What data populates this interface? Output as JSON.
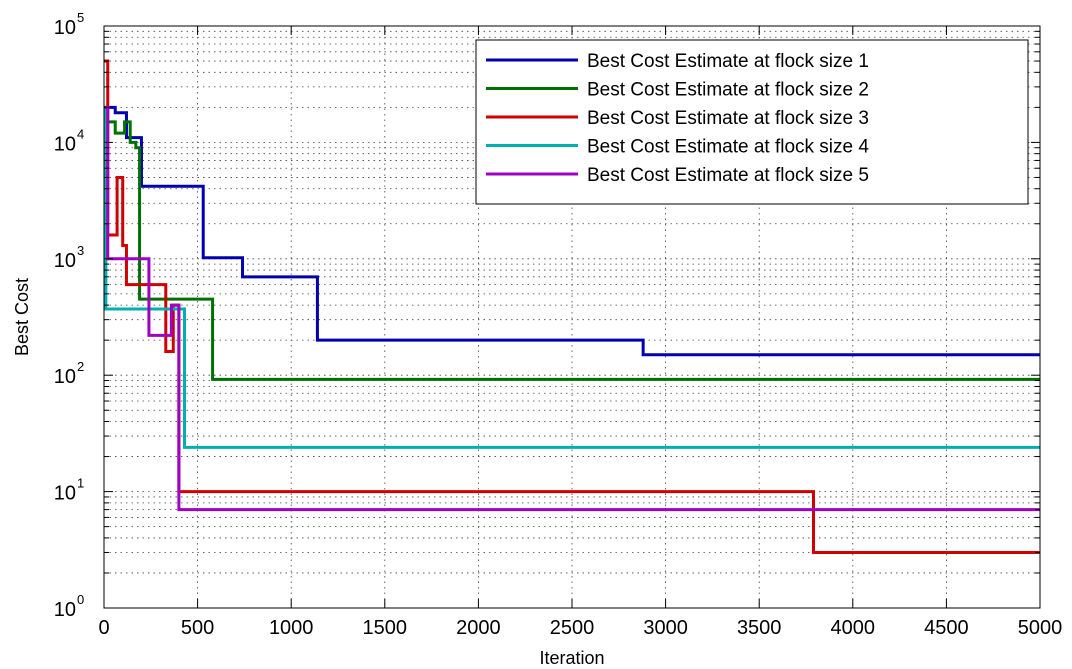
{
  "chart_data": {
    "type": "line",
    "title": "",
    "xlabel": "Iteration",
    "ylabel": "Best Cost",
    "xlim": [
      0,
      5000
    ],
    "ylim": [
      1,
      100000
    ],
    "yscale": "log",
    "grid": true,
    "minor_grid": true,
    "legend_position": "top-right",
    "x_ticks": [
      "0",
      "500",
      "1000",
      "1500",
      "2000",
      "2500",
      "3000",
      "3500",
      "4000",
      "4500",
      "5000"
    ],
    "x_tick_values": [
      0,
      500,
      1000,
      1500,
      2000,
      2500,
      3000,
      3500,
      4000,
      4500,
      5000
    ],
    "y_ticks": [
      {
        "base": "10",
        "exp": "0",
        "value": 1
      },
      {
        "base": "10",
        "exp": "1",
        "value": 10
      },
      {
        "base": "10",
        "exp": "2",
        "value": 100
      },
      {
        "base": "10",
        "exp": "3",
        "value": 1000
      },
      {
        "base": "10",
        "exp": "4",
        "value": 10000
      },
      {
        "base": "10",
        "exp": "5",
        "value": 100000
      }
    ],
    "series": [
      {
        "name": "Best Cost Estimate at flock size 1",
        "color": "#0000b0",
        "points": [
          [
            0,
            20000
          ],
          [
            60,
            20000
          ],
          [
            60,
            18000
          ],
          [
            120,
            18000
          ],
          [
            120,
            11000
          ],
          [
            200,
            11000
          ],
          [
            200,
            4200
          ],
          [
            530,
            4200
          ],
          [
            530,
            1020
          ],
          [
            740,
            1020
          ],
          [
            740,
            700
          ],
          [
            1140,
            700
          ],
          [
            1140,
            200
          ],
          [
            2880,
            200
          ],
          [
            2880,
            150
          ],
          [
            5000,
            150
          ]
        ]
      },
      {
        "name": "Best Cost Estimate at flock size 2",
        "color": "#007000",
        "points": [
          [
            0,
            15000
          ],
          [
            60,
            15000
          ],
          [
            60,
            12000
          ],
          [
            110,
            12000
          ],
          [
            110,
            15000
          ],
          [
            140,
            15000
          ],
          [
            140,
            10000
          ],
          [
            170,
            10000
          ],
          [
            170,
            9000
          ],
          [
            190,
            9000
          ],
          [
            190,
            450
          ],
          [
            580,
            450
          ],
          [
            580,
            92
          ],
          [
            5000,
            92
          ]
        ]
      },
      {
        "name": "Best Cost Estimate at flock size 3",
        "color": "#d00000",
        "points": [
          [
            0,
            50000
          ],
          [
            20,
            50000
          ],
          [
            20,
            1600
          ],
          [
            70,
            1600
          ],
          [
            70,
            5000
          ],
          [
            100,
            5000
          ],
          [
            100,
            1300
          ],
          [
            120,
            1300
          ],
          [
            120,
            600
          ],
          [
            250,
            600
          ],
          [
            250,
            600
          ],
          [
            330,
            600
          ],
          [
            330,
            160
          ],
          [
            370,
            160
          ],
          [
            370,
            400
          ],
          [
            400,
            400
          ],
          [
            400,
            10
          ],
          [
            3790,
            10
          ],
          [
            3790,
            3
          ],
          [
            5000,
            3
          ]
        ]
      },
      {
        "name": "Best Cost Estimate at flock size 4",
        "color": "#00b0b0",
        "points": [
          [
            0,
            20000
          ],
          [
            10,
            20000
          ],
          [
            10,
            370
          ],
          [
            430,
            370
          ],
          [
            430,
            24
          ],
          [
            5000,
            24
          ]
        ]
      },
      {
        "name": "Best Cost Estimate at flock size 5",
        "color": "#a000c0",
        "points": [
          [
            0,
            20000
          ],
          [
            20,
            20000
          ],
          [
            20,
            1000
          ],
          [
            80,
            1000
          ],
          [
            80,
            1000
          ],
          [
            240,
            1000
          ],
          [
            240,
            220
          ],
          [
            360,
            220
          ],
          [
            360,
            400
          ],
          [
            400,
            400
          ],
          [
            400,
            7
          ],
          [
            5000,
            7
          ]
        ]
      }
    ]
  }
}
